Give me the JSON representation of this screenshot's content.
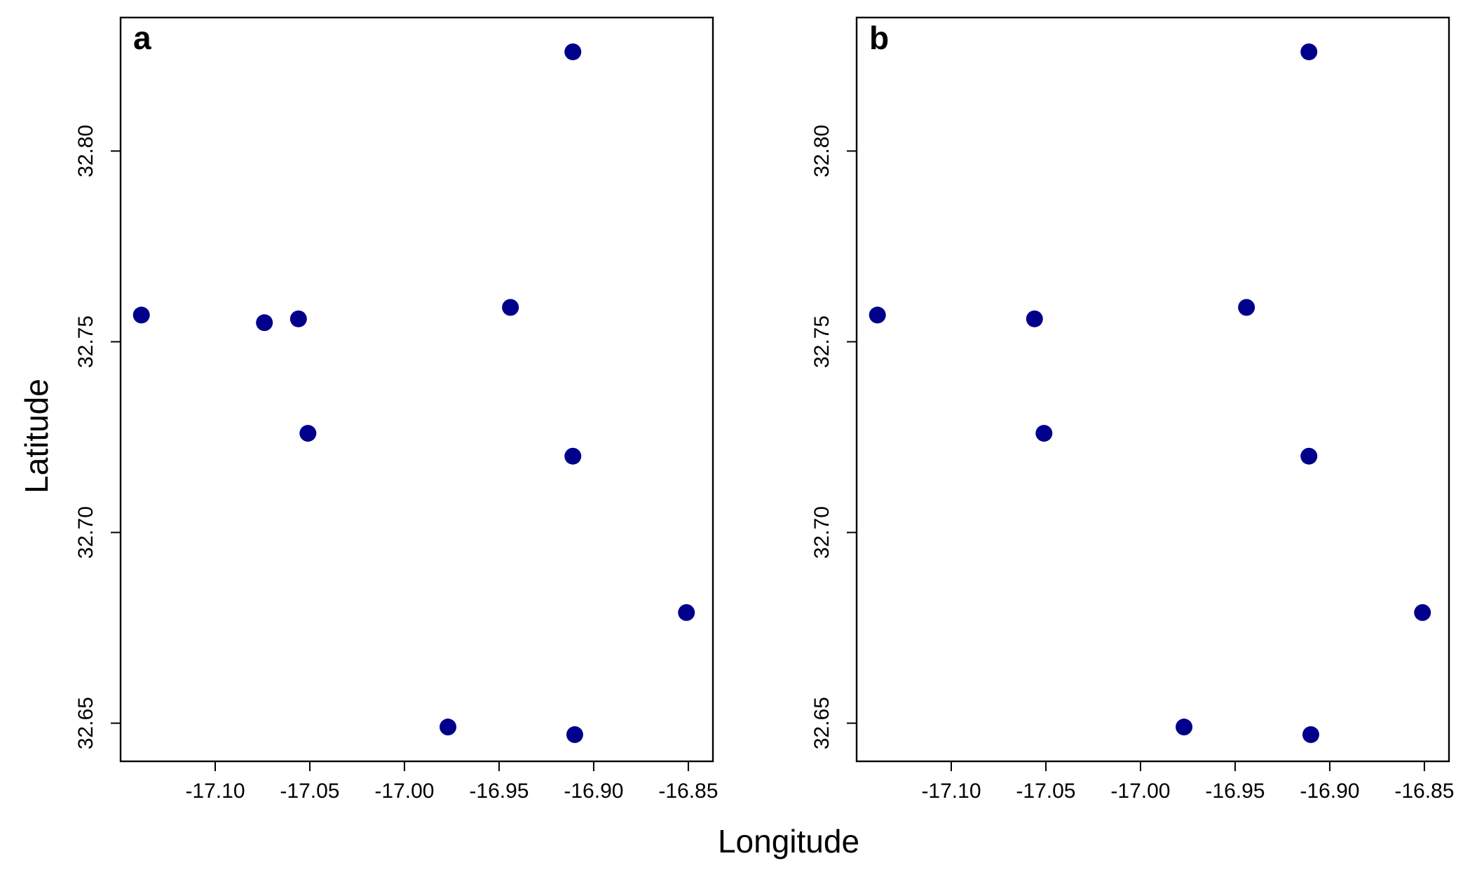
{
  "colors": {
    "point": "#00008B",
    "axes": "#000000",
    "background": "#FFFFFF"
  },
  "labels": {
    "xlabel": "Longitude",
    "ylabel": "Latitude"
  },
  "chart_data": [
    {
      "type": "scatter",
      "panel_label": "a",
      "xlim": [
        -17.15,
        -16.837
      ],
      "ylim": [
        32.64,
        32.835
      ],
      "x_ticks": [
        -17.1,
        -17.05,
        -17.0,
        -16.95,
        -16.9,
        -16.85
      ],
      "x_tick_labels": [
        "-17.10",
        "-17.05",
        "-17.00",
        "-16.95",
        "-16.90",
        "-16.85"
      ],
      "y_ticks": [
        32.65,
        32.7,
        32.75,
        32.8
      ],
      "y_tick_labels": [
        "32.65",
        "32.70",
        "32.75",
        "32.80"
      ],
      "grid": false,
      "points": [
        {
          "x": -17.139,
          "y": 32.757
        },
        {
          "x": -17.074,
          "y": 32.755
        },
        {
          "x": -17.056,
          "y": 32.756
        },
        {
          "x": -17.051,
          "y": 32.726
        },
        {
          "x": -16.944,
          "y": 32.759
        },
        {
          "x": -16.911,
          "y": 32.826
        },
        {
          "x": -16.911,
          "y": 32.72
        },
        {
          "x": -16.851,
          "y": 32.679
        },
        {
          "x": -16.977,
          "y": 32.649
        },
        {
          "x": -16.91,
          "y": 32.647
        }
      ]
    },
    {
      "type": "scatter",
      "panel_label": "b",
      "xlim": [
        -17.15,
        -16.837
      ],
      "ylim": [
        32.64,
        32.835
      ],
      "x_ticks": [
        -17.1,
        -17.05,
        -17.0,
        -16.95,
        -16.9,
        -16.85
      ],
      "x_tick_labels": [
        "-17.10",
        "-17.05",
        "-17.00",
        "-16.95",
        "-16.90",
        "-16.85"
      ],
      "y_ticks": [
        32.65,
        32.7,
        32.75,
        32.8
      ],
      "y_tick_labels": [
        "32.65",
        "32.70",
        "32.75",
        "32.80"
      ],
      "grid": false,
      "points": [
        {
          "x": -17.139,
          "y": 32.757
        },
        {
          "x": -17.056,
          "y": 32.756
        },
        {
          "x": -17.051,
          "y": 32.726
        },
        {
          "x": -16.944,
          "y": 32.759
        },
        {
          "x": -16.911,
          "y": 32.826
        },
        {
          "x": -16.911,
          "y": 32.72
        },
        {
          "x": -16.851,
          "y": 32.679
        },
        {
          "x": -16.977,
          "y": 32.649
        },
        {
          "x": -16.91,
          "y": 32.647
        }
      ]
    }
  ]
}
